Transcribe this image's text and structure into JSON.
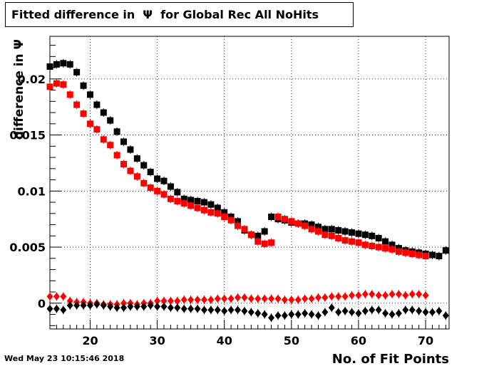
{
  "title": "Fitted difference in  Ψ  for Global Rec All NoHits",
  "datestamp": "Wed May 23 10:15:46 2018",
  "chart_data": {
    "type": "scatter",
    "title": "Fitted difference in  Ψ  for Global Rec All NoHits",
    "xlabel": "No. of Fit Points",
    "ylabel": "difference in  Ψ",
    "xlim": [
      14,
      73.5
    ],
    "ylim": [
      -0.0023,
      0.0238
    ],
    "x_ticks": [
      20,
      30,
      40,
      50,
      60,
      70
    ],
    "x_tick_labels": [
      "20",
      "30",
      "40",
      "50",
      "60",
      "70"
    ],
    "y_ticks": [
      0,
      0.005,
      0.01,
      0.015,
      0.02
    ],
    "y_tick_labels": [
      "0",
      "0.005",
      "0.01",
      "0.015",
      "0.02"
    ],
    "grid": true,
    "series": [
      {
        "marker": "square",
        "color": "#000000",
        "x": [
          14,
          15,
          16,
          17,
          18,
          19,
          20,
          21,
          22,
          23,
          24,
          25,
          26,
          27,
          28,
          29,
          30,
          31,
          32,
          33,
          34,
          35,
          36,
          37,
          38,
          39,
          40,
          41,
          42,
          43,
          44,
          45,
          46,
          47,
          48,
          49,
          50,
          51,
          52,
          53,
          54,
          55,
          56,
          57,
          58,
          59,
          60,
          61,
          62,
          63,
          64,
          65,
          66,
          67,
          68,
          69,
          70,
          71,
          72,
          73
        ],
        "y": [
          0.0211,
          0.0213,
          0.0214,
          0.0213,
          0.0206,
          0.0194,
          0.0186,
          0.0177,
          0.017,
          0.0163,
          0.0153,
          0.0144,
          0.0137,
          0.0129,
          0.0123,
          0.0117,
          0.0111,
          0.0109,
          0.0104,
          0.0099,
          0.0093,
          0.0092,
          0.0091,
          0.009,
          0.0088,
          0.0085,
          0.0081,
          0.0077,
          0.0073,
          0.0065,
          0.0061,
          0.006,
          0.0064,
          0.0077,
          0.0075,
          0.0074,
          0.0072,
          0.0071,
          0.0071,
          0.007,
          0.0068,
          0.0066,
          0.0066,
          0.0065,
          0.0064,
          0.0063,
          0.0062,
          0.0061,
          0.006,
          0.0058,
          0.0055,
          0.0052,
          0.0049,
          0.0047,
          0.0046,
          0.0045,
          0.0044,
          0.0043,
          0.0042,
          0.0047
        ]
      },
      {
        "marker": "square",
        "color": "#ff0000",
        "x": [
          14,
          15,
          16,
          17,
          18,
          19,
          20,
          21,
          22,
          23,
          24,
          25,
          26,
          27,
          28,
          29,
          30,
          31,
          32,
          33,
          34,
          35,
          36,
          37,
          38,
          39,
          40,
          41,
          42,
          43,
          44,
          45,
          46,
          47,
          48,
          49,
          50,
          51,
          52,
          53,
          54,
          55,
          56,
          57,
          58,
          59,
          60,
          61,
          62,
          63,
          64,
          65,
          66,
          67,
          68,
          69,
          70
        ],
        "y": [
          0.0193,
          0.0196,
          0.0195,
          0.0186,
          0.0177,
          0.0169,
          0.016,
          0.0155,
          0.0146,
          0.0141,
          0.0132,
          0.0124,
          0.0118,
          0.0113,
          0.0107,
          0.0103,
          0.01,
          0.0097,
          0.0093,
          0.0091,
          0.0089,
          0.0087,
          0.0085,
          0.0083,
          0.0081,
          0.008,
          0.0077,
          0.0074,
          0.0069,
          0.0066,
          0.0061,
          0.0055,
          0.0053,
          0.0054,
          0.0077,
          0.0075,
          0.0073,
          0.0071,
          0.0069,
          0.0066,
          0.0064,
          0.0061,
          0.006,
          0.0058,
          0.0056,
          0.0055,
          0.0054,
          0.0052,
          0.0051,
          0.005,
          0.0049,
          0.0048,
          0.0046,
          0.0045,
          0.0044,
          0.0043,
          0.0042
        ]
      },
      {
        "marker": "diamond",
        "color": "#ff0000",
        "x": [
          14,
          15,
          16,
          17,
          18,
          19,
          20,
          21,
          22,
          23,
          24,
          25,
          26,
          27,
          28,
          29,
          30,
          31,
          32,
          33,
          34,
          35,
          36,
          37,
          38,
          39,
          40,
          41,
          42,
          43,
          44,
          45,
          46,
          47,
          48,
          49,
          50,
          51,
          52,
          53,
          54,
          55,
          56,
          57,
          58,
          59,
          60,
          61,
          62,
          63,
          64,
          65,
          66,
          67,
          68,
          69,
          70
        ],
        "y": [
          0.0006,
          0.0006,
          0.0006,
          0.0002,
          0.0001,
          0.0001,
          0.0,
          0.0,
          -0.0001,
          -0.0001,
          -0.0001,
          0.0,
          0.0,
          -0.0001,
          0.0,
          0.0,
          0.0002,
          0.0002,
          0.0002,
          0.0002,
          0.0003,
          0.0003,
          0.0003,
          0.0003,
          0.0003,
          0.0004,
          0.0004,
          0.0004,
          0.0005,
          0.0005,
          0.0004,
          0.0004,
          0.0004,
          0.0004,
          0.0004,
          0.0003,
          0.0003,
          0.0003,
          0.0004,
          0.0004,
          0.0005,
          0.0005,
          0.0006,
          0.0006,
          0.0006,
          0.0007,
          0.0007,
          0.0008,
          0.0008,
          0.0007,
          0.0007,
          0.0008,
          0.0008,
          0.0007,
          0.0008,
          0.0008,
          0.0007
        ]
      },
      {
        "marker": "diamond",
        "color": "#000000",
        "x": [
          14,
          15,
          16,
          17,
          18,
          19,
          20,
          21,
          22,
          23,
          24,
          25,
          26,
          27,
          28,
          29,
          30,
          31,
          32,
          33,
          34,
          35,
          36,
          37,
          38,
          39,
          40,
          41,
          42,
          43,
          44,
          45,
          46,
          47,
          48,
          49,
          50,
          51,
          52,
          53,
          54,
          55,
          56,
          57,
          58,
          59,
          60,
          61,
          62,
          63,
          64,
          65,
          66,
          67,
          68,
          69,
          70,
          71,
          72,
          73
        ],
        "y": [
          -0.0005,
          -0.0005,
          -0.0006,
          -0.0002,
          -0.0002,
          -0.0002,
          -0.0002,
          -0.0001,
          -0.0002,
          -0.0003,
          -0.0004,
          -0.0004,
          -0.0003,
          -0.0003,
          -0.0003,
          -0.0002,
          -0.0003,
          -0.0003,
          -0.0004,
          -0.0004,
          -0.0005,
          -0.0005,
          -0.0005,
          -0.0006,
          -0.0006,
          -0.0006,
          -0.0007,
          -0.0006,
          -0.0006,
          -0.0007,
          -0.0008,
          -0.0009,
          -0.001,
          -0.0013,
          -0.0011,
          -0.0011,
          -0.001,
          -0.001,
          -0.0009,
          -0.001,
          -0.0011,
          -0.0008,
          -0.0004,
          -0.0008,
          -0.0007,
          -0.0008,
          -0.0009,
          -0.0007,
          -0.0006,
          -0.0006,
          -0.0009,
          -0.001,
          -0.0009,
          -0.0006,
          -0.0006,
          -0.0007,
          -0.0008,
          -0.0008,
          -0.0007,
          -0.0011
        ]
      }
    ]
  }
}
